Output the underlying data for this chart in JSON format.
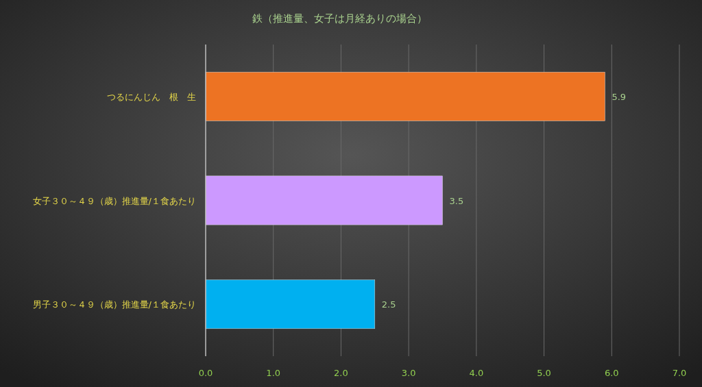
{
  "chart_data": {
    "type": "bar",
    "orientation": "horizontal",
    "title": "鉄（推進量、女子は月経ありの場合）",
    "categories": [
      "つるにんじん　根　生",
      "女子３０～４９（歳）推進量/１食あたり",
      "男子３０～４９（歳）推進量/１食あたり"
    ],
    "values": [
      5.9,
      3.5,
      2.5
    ],
    "colors": [
      "#ed7323",
      "#cc99ff",
      "#00b0f0"
    ],
    "xlim": [
      0,
      7
    ],
    "xticks": [
      {
        "value": 0,
        "label": "0.0"
      },
      {
        "value": 1,
        "label": "1.0"
      },
      {
        "value": 2,
        "label": "2.0"
      },
      {
        "value": 3,
        "label": "3.0"
      },
      {
        "value": 4,
        "label": "4.0"
      },
      {
        "value": 5,
        "label": "5.0"
      },
      {
        "value": 6,
        "label": "6.0"
      },
      {
        "value": 7,
        "label": "7.0"
      }
    ],
    "grid": "x",
    "data_labels": true
  }
}
